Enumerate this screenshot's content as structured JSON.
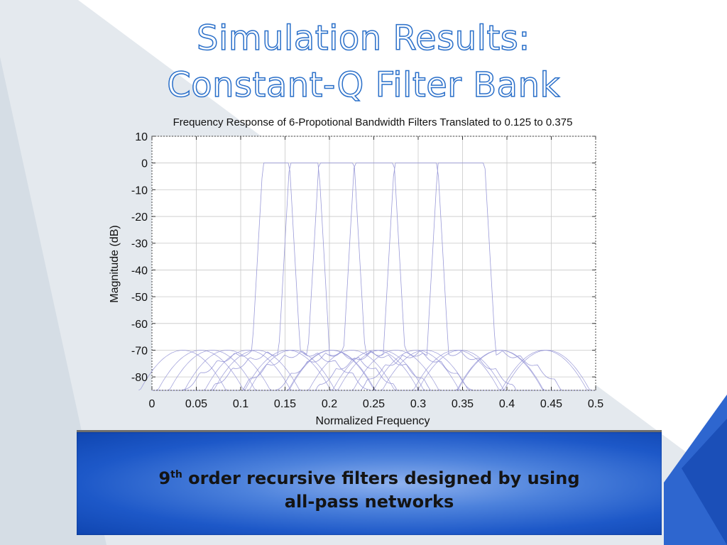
{
  "slide": {
    "title_line1": "Simulation Results:",
    "title_line2": "Constant-Q Filter Bank",
    "caption_order_num": "9",
    "caption_order_sup": "th",
    "caption_line1_rest": " order recursive filters designed by using",
    "caption_line2": "all-pass networks",
    "colors": {
      "accent_blue": "#1d58c8",
      "title_outline": "#2a6fc9",
      "curve": "#9a9ad8"
    }
  },
  "chart_data": {
    "type": "line",
    "title": "Frequency Response of 6-Propotional Bandwidth Filters Translated to 0.125 to 0.375",
    "xlabel": "Normalized Frequency",
    "ylabel": "Magnitude (dB)",
    "xlim": [
      0,
      0.5
    ],
    "ylim": [
      -85,
      10
    ],
    "xticks": [
      "0",
      "0.05",
      "0.1",
      "0.15",
      "0.2",
      "0.25",
      "0.3",
      "0.35",
      "0.4",
      "0.45",
      "0.5"
    ],
    "yticks": [
      "10",
      "0",
      "-10",
      "-20",
      "-30",
      "-40",
      "-50",
      "-60",
      "-70",
      "-80"
    ],
    "grid": true,
    "passband_db": 0,
    "stopband_db": -70,
    "series": [
      {
        "passband": [
          0.125,
          0.155
        ]
      },
      {
        "passband": [
          0.155,
          0.188
        ]
      },
      {
        "passband": [
          0.188,
          0.228
        ]
      },
      {
        "passband": [
          0.228,
          0.273
        ]
      },
      {
        "passband": [
          0.273,
          0.322
        ]
      },
      {
        "passband": [
          0.322,
          0.375
        ]
      }
    ]
  }
}
